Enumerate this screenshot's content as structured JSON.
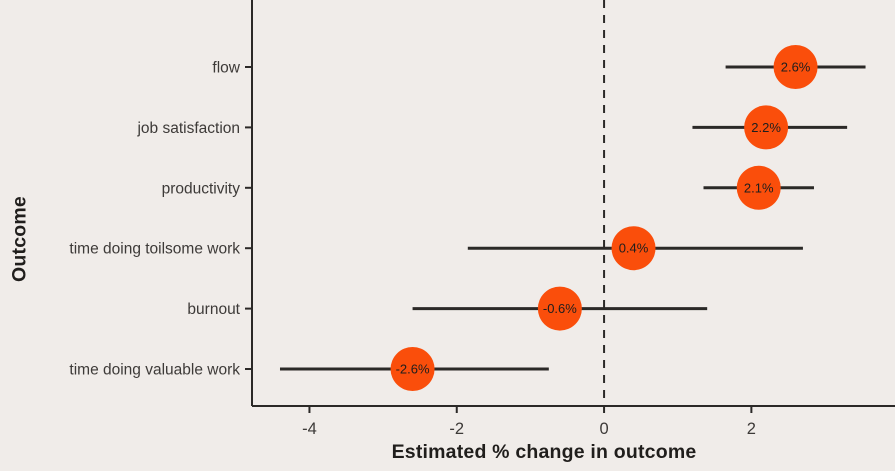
{
  "chart_data": {
    "type": "scatter",
    "subtype": "dot-whisker-forest-plot",
    "title": "",
    "xlabel": "Estimated % change in outcome",
    "ylabel": "Outcome",
    "xlim": [
      -4.78,
      3.95
    ],
    "x_ticks": [
      -4,
      -2,
      0,
      2
    ],
    "reference_line_x": 0,
    "grid": false,
    "legend": "none",
    "rows": [
      {
        "label": "flow",
        "estimate": 2.6,
        "estimate_label": "2.6%",
        "ci_low": 1.65,
        "ci_high": 3.55
      },
      {
        "label": "job satisfaction",
        "estimate": 2.2,
        "estimate_label": "2.2%",
        "ci_low": 1.2,
        "ci_high": 3.3
      },
      {
        "label": "productivity",
        "estimate": 2.1,
        "estimate_label": "2.1%",
        "ci_low": 1.35,
        "ci_high": 2.85
      },
      {
        "label": "time doing toilsome work",
        "estimate": 0.4,
        "estimate_label": "0.4%",
        "ci_low": -1.85,
        "ci_high": 2.7
      },
      {
        "label": "burnout",
        "estimate": -0.6,
        "estimate_label": "-0.6%",
        "ci_low": -2.6,
        "ci_high": 1.4
      },
      {
        "label": "time doing valuable work",
        "estimate": -2.6,
        "estimate_label": "-2.6%",
        "ci_low": -4.4,
        "ci_high": -0.75
      }
    ],
    "colors": {
      "background": "#f0ece9",
      "point": "#fa4e0b",
      "line": "#2b2927",
      "axis_text": "#3d3a38",
      "point_label": "#1e1e1e",
      "axis_title": "#201e1c"
    }
  }
}
